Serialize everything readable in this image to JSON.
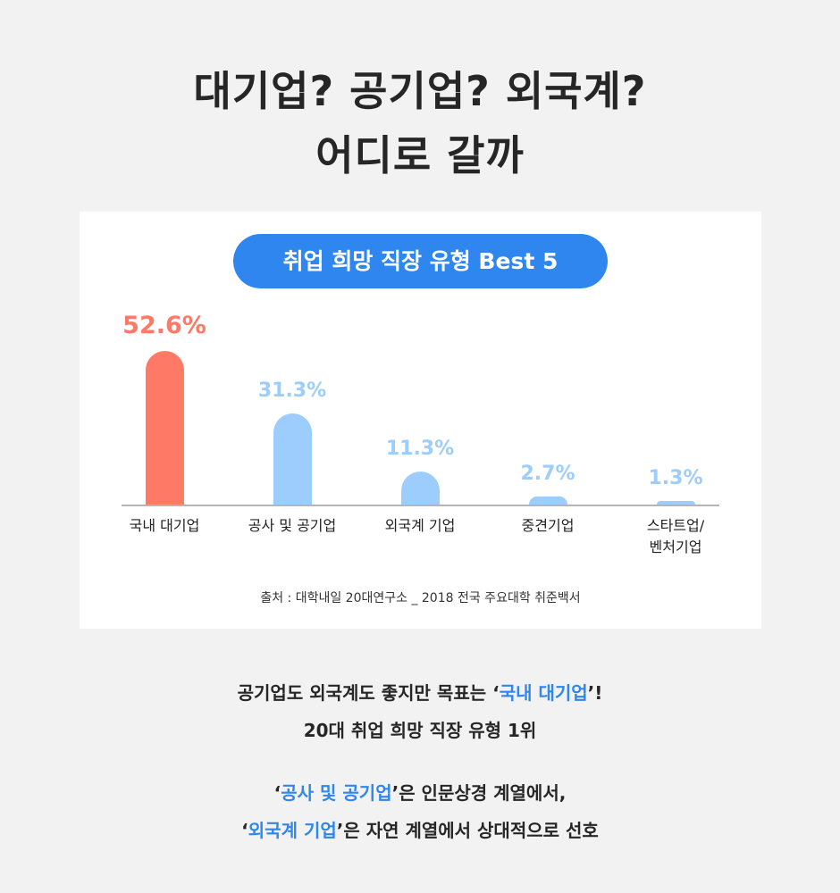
{
  "headline": {
    "line1": "대기업? 공기업? 외국계?",
    "line2": "어디로 갈까"
  },
  "chart_data": {
    "type": "bar",
    "title": "취업 희망 직장 유형 Best 5",
    "categories": [
      "국내 대기업",
      "공사 및 공기업",
      "외국계 기업",
      "중견기업",
      "스타트업/\n벤처기업"
    ],
    "values": [
      52.6,
      31.3,
      11.3,
      2.7,
      1.3
    ],
    "value_labels": [
      "52.6%",
      "31.3%",
      "11.3%",
      "2.7%",
      "1.3%"
    ],
    "unit": "%",
    "ylim": [
      0,
      55
    ],
    "grid": false,
    "colors": {
      "highlight": "#ff7a66",
      "default": "#9dcdfc"
    },
    "source": "출처 : 대학내일 20대연구소 _ 2018 전국 주요대학 취준백서"
  },
  "notes": {
    "line1_pre": "공기업도 외국계도 좋지만 목표는 ‘",
    "line1_hl": "국내 대기업",
    "line1_post": "’!",
    "line2": "20대 취업 희망 직장 유형 1위",
    "line3_pre": "‘",
    "line3_hl": "공사 및 공기업",
    "line3_post": "’은 인문상경 계열에서,",
    "line4_pre": "‘",
    "line4_hl": "외국계 기업",
    "line4_post": "’은 자연 계열에서 상대적으로 선호"
  },
  "accent_color": "#2f86ef"
}
